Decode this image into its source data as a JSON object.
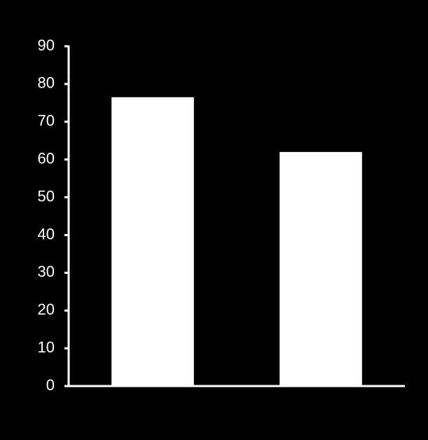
{
  "chart_data": {
    "type": "bar",
    "categories": [
      null,
      null
    ],
    "values": [
      76.5,
      62
    ],
    "color": "#ffffff",
    "ylim": [
      0,
      90
    ],
    "yticks": [
      0,
      10,
      20,
      30,
      40,
      50,
      60,
      70,
      80,
      90
    ],
    "grid": false
  }
}
